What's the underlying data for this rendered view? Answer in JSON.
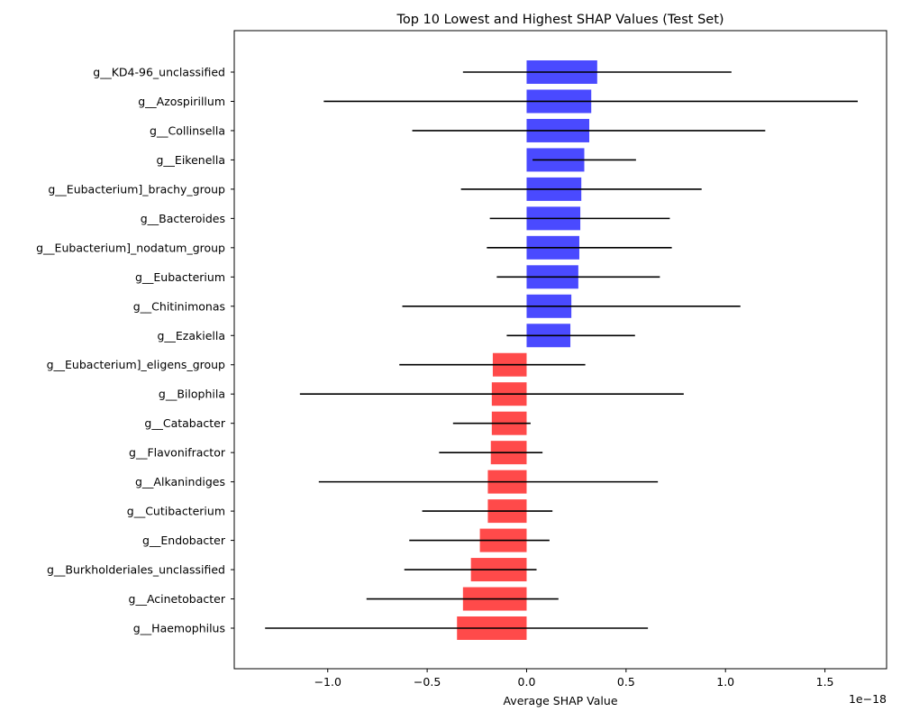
{
  "chart_data": {
    "type": "bar",
    "orientation": "horizontal",
    "title": "Top 10 Lowest and Highest SHAP Values (Test Set)",
    "xlabel": "Average SHAP Value",
    "ylabel": "",
    "x_scale_label": "1e−18",
    "xlim": [
      -1.47,
      1.81
    ],
    "xticks": [
      -1.0,
      -0.5,
      0.0,
      0.5,
      1.0,
      1.5
    ],
    "xtick_labels": [
      "−1.0",
      "−0.5",
      "0.0",
      "0.5",
      "1.0",
      "1.5"
    ],
    "grid": false,
    "colors": {
      "positive": "#4a4aff",
      "negative": "#ff4a4a",
      "errorbar": "#000000"
    },
    "categories": [
      "g__KD4-96_unclassified",
      "g__Azospirillum",
      "g__Collinsella",
      "g__Eikenella",
      "g__Eubacterium]_brachy_group",
      "g__Bacteroides",
      "g__Eubacterium]_nodatum_group",
      "g__Eubacterium",
      "g__Chitinimonas",
      "g__Ezakiella",
      "g__Eubacterium]_eligens_group",
      "g__Bilophila",
      "g__Catabacter",
      "g__Flavonifractor",
      "g__Alkanindiges",
      "g__Cutibacterium",
      "g__Endobacter",
      "g__Burkholderiales_unclassified",
      "g__Acinetobacter",
      "g__Haemophilus"
    ],
    "values": [
      0.355,
      0.325,
      0.315,
      0.29,
      0.275,
      0.27,
      0.265,
      0.26,
      0.225,
      0.22,
      -0.17,
      -0.175,
      -0.175,
      -0.18,
      -0.195,
      -0.195,
      -0.235,
      -0.28,
      -0.32,
      -0.35
    ],
    "error_low": [
      -0.32,
      -1.02,
      -0.575,
      0.03,
      -0.33,
      -0.185,
      -0.2,
      -0.15,
      -0.625,
      -0.1,
      -0.64,
      -1.14,
      -0.37,
      -0.44,
      -1.045,
      -0.525,
      -0.59,
      -0.615,
      -0.805,
      -1.315
    ],
    "error_high": [
      1.03,
      1.665,
      1.2,
      0.55,
      0.88,
      0.72,
      0.73,
      0.67,
      1.075,
      0.545,
      0.295,
      0.79,
      0.02,
      0.08,
      0.66,
      0.13,
      0.115,
      0.05,
      0.16,
      0.61
    ]
  }
}
